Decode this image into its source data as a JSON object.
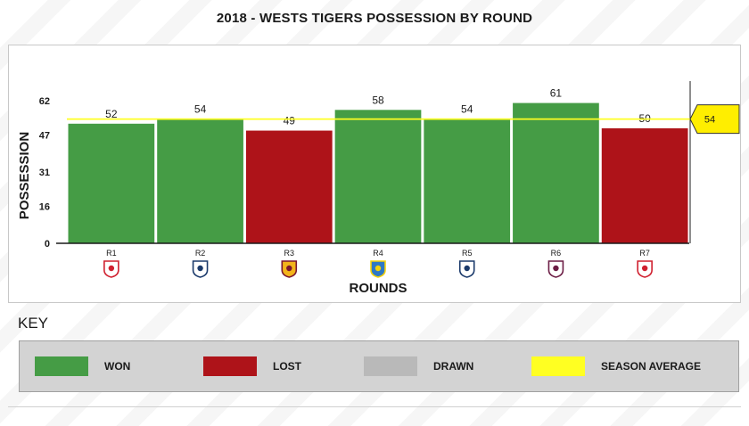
{
  "title": "2018 - WESTS TIGERS POSSESSION BY ROUND",
  "chart_data": {
    "type": "bar",
    "categories": [
      "R1",
      "R2",
      "R3",
      "R4",
      "R5",
      "R6",
      "R7"
    ],
    "values": [
      52,
      54,
      49,
      58,
      54,
      61,
      50
    ],
    "results": [
      "won",
      "won",
      "lost",
      "won",
      "won",
      "won",
      "lost"
    ],
    "opponent_logos": [
      "roosters-logo",
      "titans-logo",
      "broncos-logo",
      "eels-logo",
      "titans-logo",
      "sea-eagles-logo",
      "knights-logo"
    ],
    "xlabel": "ROUNDS",
    "ylabel": "POSSESSION",
    "yticks": [
      0,
      16,
      31,
      47,
      62
    ],
    "ylim": [
      0,
      62
    ],
    "season_average": 54,
    "season_average_label": "54",
    "grid": false,
    "legend": "bottom"
  },
  "colors": {
    "won": "#459c45",
    "lost": "#ae1319",
    "drawn": "#b9b9b9",
    "average": "#ffff22",
    "average_tag": "#ffee00"
  },
  "key": {
    "title": "KEY",
    "items": [
      {
        "label": "WON",
        "color": "#459c45"
      },
      {
        "label": "LOST",
        "color": "#ae1319"
      },
      {
        "label": "DRAWN",
        "color": "#b9b9b9"
      },
      {
        "label": "SEASON AVERAGE",
        "color": "#ffff22"
      }
    ]
  }
}
